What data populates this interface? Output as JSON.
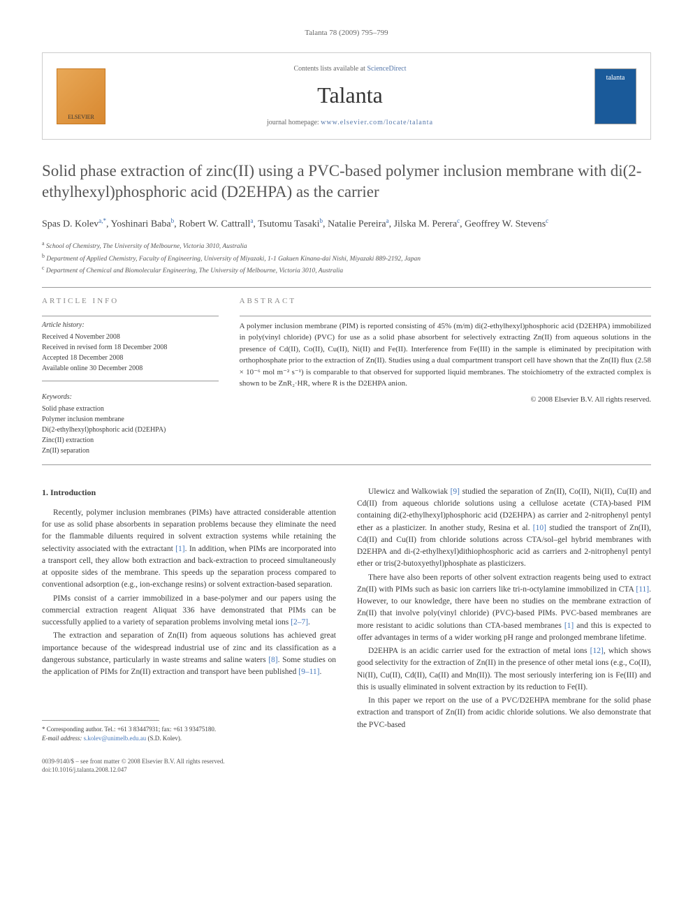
{
  "header": {
    "citation": "Talanta 78 (2009) 795–799"
  },
  "contentsBox": {
    "elsevierLabel": "ELSEVIER",
    "availablePrefix": "Contents lists available at ",
    "availableLink": "ScienceDirect",
    "journalName": "Talanta",
    "homepagePrefix": "journal homepage: ",
    "homepageUrl": "www.elsevier.com/locate/talanta",
    "coverLabel": "talanta"
  },
  "article": {
    "title": "Solid phase extraction of zinc(II) using a PVC-based polymer inclusion membrane with di(2-ethylhexyl)phosphoric acid (D2EHPA) as the carrier",
    "authorsHtml": "Spas D. Kolev<sup>a,*</sup>, Yoshinari Baba<sup>b</sup>, Robert W. Cattrall<sup>a</sup>, Tsutomu Tasaki<sup>b</sup>, Natalie Pereira<sup>a</sup>, Jilska M. Perera<sup>c</sup>, Geoffrey W. Stevens<sup>c</sup>",
    "affiliations": [
      {
        "sup": "a",
        "text": "School of Chemistry, The University of Melbourne, Victoria 3010, Australia"
      },
      {
        "sup": "b",
        "text": "Department of Applied Chemistry, Faculty of Engineering, University of Miyazaki, 1-1 Gakuen Kinana-dai Nishi, Miyazaki 889-2192, Japan"
      },
      {
        "sup": "c",
        "text": "Department of Chemical and Biomolecular Engineering, The University of Melbourne, Victoria 3010, Australia"
      }
    ]
  },
  "info": {
    "infoHeading": "ARTICLE INFO",
    "historyLabel": "Article history:",
    "history": [
      "Received 4 November 2008",
      "Received in revised form 18 December 2008",
      "Accepted 18 December 2008",
      "Available online 30 December 2008"
    ],
    "keywordsLabel": "Keywords:",
    "keywords": [
      "Solid phase extraction",
      "Polymer inclusion membrane",
      "Di(2-ethylhexyl)phosphoric acid (D2EHPA)",
      "Zinc(II) extraction",
      "Zn(II) separation"
    ]
  },
  "abstract": {
    "heading": "ABSTRACT",
    "text": "A polymer inclusion membrane (PIM) is reported consisting of 45% (m/m) di(2-ethylhexyl)phosphoric acid (D2EHPA) immobilized in poly(vinyl chloride) (PVC) for use as a solid phase absorbent for selectively extracting Zn(II) from aqueous solutions in the presence of Cd(II), Co(II), Cu(II), Ni(II) and Fe(II). Interference from Fe(III) in the sample is eliminated by precipitation with orthophosphate prior to the extraction of Zn(II). Studies using a dual compartment transport cell have shown that the Zn(II) flux (2.58 × 10⁻⁶ mol m⁻² s⁻¹) is comparable to that observed for supported liquid membranes. The stoichiometry of the extracted complex is shown to be ZnR₂·HR, where R is the D2EHPA anion.",
    "copyright": "© 2008 Elsevier B.V. All rights reserved."
  },
  "body": {
    "section1Heading": "1.  Introduction",
    "leftParas": [
      "Recently, polymer inclusion membranes (PIMs) have attracted considerable attention for use as solid phase absorbents in separation problems because they eliminate the need for the flammable diluents required in solvent extraction systems while retaining the selectivity associated with the extractant [1]. In addition, when PIMs are incorporated into a transport cell, they allow both extraction and back-extraction to proceed simultaneously at opposite sides of the membrane. This speeds up the separation process compared to conventional adsorption (e.g., ion-exchange resins) or solvent extraction-based separation.",
      "PIMs consist of a carrier immobilized in a base-polymer and our papers using the commercial extraction reagent Aliquat 336 have demonstrated that PIMs can be successfully applied to a variety of separation problems involving metal ions [2–7].",
      "The extraction and separation of Zn(II) from aqueous solutions has achieved great importance because of the widespread industrial use of zinc and its classification as a dangerous substance, particularly in waste streams and saline waters [8]. Some studies on the application of PIMs for Zn(II) extraction and transport have been published [9–11]."
    ],
    "rightParas": [
      "Ulewicz and Walkowiak [9] studied the separation of Zn(II), Co(II), Ni(II), Cu(II) and Cd(II) from aqueous chloride solutions using a cellulose acetate (CTA)-based PIM containing di(2-ethylhexyl)phosphoric acid (D2EHPA) as carrier and 2-nitrophenyl pentyl ether as a plasticizer. In another study, Resina et al. [10] studied the transport of Zn(II), Cd(II) and Cu(II) from chloride solutions across CTA/sol–gel hybrid membranes with D2EHPA and di-(2-ethylhexyl)dithiophosphoric acid as carriers and 2-nitrophenyl pentyl ether or tris(2-butoxyethyl)phosphate as plasticizers.",
      "There have also been reports of other solvent extraction reagents being used to extract Zn(II) with PIMs such as basic ion carriers like tri-n-octylamine immobilized in CTA [11]. However, to our knowledge, there have been no studies on the membrane extraction of Zn(II) that involve poly(vinyl chloride) (PVC)-based PIMs. PVC-based membranes are more resistant to acidic solutions than CTA-based membranes [1] and this is expected to offer advantages in terms of a wider working pH range and prolonged membrane lifetime.",
      "D2EHPA is an acidic carrier used for the extraction of metal ions [12], which shows good selectivity for the extraction of Zn(II) in the presence of other metal ions (e.g., Co(II), Ni(II), Cu(II), Cd(II), Ca(II) and Mn(II)). The most seriously interfering ion is Fe(III) and this is usually eliminated in solvent extraction by its reduction to Fe(II).",
      "In this paper we report on the use of a PVC/D2EHPA membrane for the solid phase extraction and transport of Zn(II) from acidic chloride solutions. We also demonstrate that the PVC-based"
    ]
  },
  "footnote": {
    "corresponding": "* Corresponding author. Tel.: +61 3 83447931; fax: +61 3 93475180.",
    "emailLabel": "E-mail address: ",
    "email": "s.kolev@unimelb.edu.au",
    "emailSuffix": " (S.D. Kolev)."
  },
  "bottom": {
    "line1": "0039-9140/$ – see front matter © 2008 Elsevier B.V. All rights reserved.",
    "line2": "doi:10.1016/j.talanta.2008.12.047"
  },
  "colors": {
    "link": "#4477bb",
    "text": "#3a3a3a",
    "rule": "#999999"
  }
}
